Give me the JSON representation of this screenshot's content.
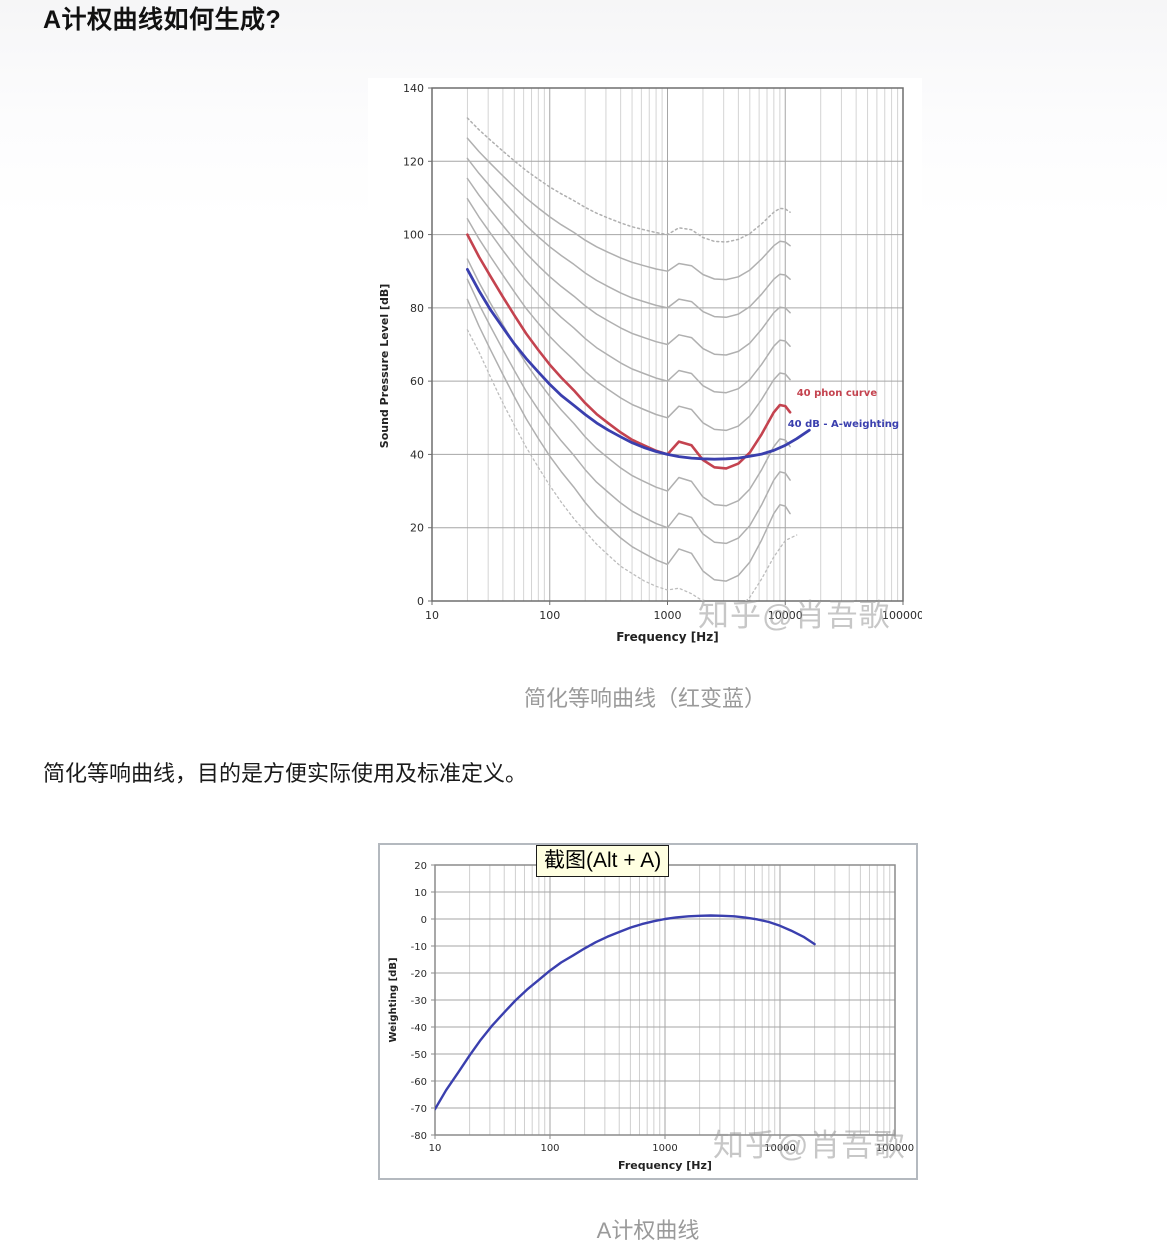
{
  "page": {
    "heading": "A计权曲线如何生成?",
    "caption_1": "简化等响曲线（红变蓝）",
    "paragraph": "简化等响曲线，目的是方便实际使用及标准定义。",
    "caption_2": "A计权曲线",
    "watermark": "知乎@肖吾歌",
    "tooltip": "截图(Alt + A)"
  },
  "colors": {
    "red_curve": "#c4434f",
    "blue_curve": "#3a3fae",
    "grey_curve": "#b0b0b0",
    "caption_grey": "#9a9a9a",
    "tooltip_bg": "#ffffe1"
  },
  "chart_data": [
    {
      "id": "elc",
      "type": "line",
      "xscale": "log",
      "title": "",
      "xlabel": "Frequency [Hz]",
      "ylabel": "Sound Pressure Level [dB]",
      "xlim": [
        10,
        100000
      ],
      "ylim": [
        0,
        140
      ],
      "xticks": [
        10,
        100,
        1000,
        10000,
        100000
      ],
      "yticks": [
        0,
        20,
        40,
        60,
        80,
        100,
        120,
        140
      ],
      "grid": true,
      "series": [
        {
          "name": "equal-loudness contours (phon family, grey)",
          "type": "family",
          "color": "#b0b0b0",
          "width": 1.5,
          "levels": [
            10,
            20,
            30,
            50,
            60,
            70,
            80,
            90
          ],
          "dotted_levels": [
            100
          ],
          "k_a": 1.28,
          "k_b": 0.0075,
          "freqs": [
            20,
            25,
            31.5,
            40,
            50,
            63,
            80,
            100,
            125,
            160,
            200,
            250,
            315,
            400,
            500,
            630,
            800,
            1000,
            1250,
            1600,
            2000,
            2500,
            3150,
            4000,
            5000,
            6300,
            8000,
            9000,
            10000,
            11000
          ],
          "offsets": [
            60,
            54,
            48.5,
            43,
            38,
            33,
            28.5,
            24.5,
            21,
            17.5,
            14,
            11,
            8.5,
            6,
            4,
            2.5,
            1,
            0,
            3.5,
            2.5,
            -1.5,
            -3.5,
            -3.8,
            -2.5,
            0.5,
            5.5,
            11.5,
            13.5,
            13.2,
            11.5
          ]
        },
        {
          "name": "hearing threshold (dotted)",
          "color": "#bdbdbd",
          "width": 1.3,
          "dash": "2 3",
          "points": [
            [
              20,
              74
            ],
            [
              25,
              68
            ],
            [
              31.5,
              61
            ],
            [
              40,
              54
            ],
            [
              50,
              48
            ],
            [
              63,
              42
            ],
            [
              80,
              36.5
            ],
            [
              100,
              31.5
            ],
            [
              125,
              27
            ],
            [
              160,
              22.5
            ],
            [
              200,
              19
            ],
            [
              250,
              15.5
            ],
            [
              315,
              12.5
            ],
            [
              400,
              9.5
            ],
            [
              500,
              7.5
            ],
            [
              630,
              5.5
            ],
            [
              800,
              4
            ],
            [
              1000,
              3
            ],
            [
              1250,
              3.5
            ],
            [
              1600,
              2
            ],
            [
              2000,
              0
            ],
            [
              2500,
              -2
            ],
            [
              3150,
              -3
            ],
            [
              4000,
              -2
            ],
            [
              5000,
              1
            ],
            [
              6300,
              6
            ],
            [
              8000,
              12
            ],
            [
              10000,
              16.5
            ],
            [
              12500,
              18
            ]
          ]
        },
        {
          "name": "40 phon curve",
          "color": "#c4434f",
          "width": 2.6,
          "points": [
            [
              20,
              100
            ],
            [
              25,
              94
            ],
            [
              31.5,
              88.5
            ],
            [
              40,
              83
            ],
            [
              50,
              78
            ],
            [
              63,
              73
            ],
            [
              80,
              68.5
            ],
            [
              100,
              64.5
            ],
            [
              125,
              61
            ],
            [
              160,
              57.5
            ],
            [
              200,
              54
            ],
            [
              250,
              51
            ],
            [
              315,
              48.5
            ],
            [
              400,
              46
            ],
            [
              500,
              44
            ],
            [
              630,
              42.5
            ],
            [
              800,
              41
            ],
            [
              1000,
              40
            ],
            [
              1250,
              43.5
            ],
            [
              1600,
              42.5
            ],
            [
              2000,
              38.5
            ],
            [
              2500,
              36.5
            ],
            [
              3150,
              36.2
            ],
            [
              4000,
              37.5
            ],
            [
              5000,
              40.5
            ],
            [
              6300,
              45.5
            ],
            [
              8000,
              51.5
            ],
            [
              9000,
              53.5
            ],
            [
              10000,
              53.2
            ],
            [
              11000,
              51.5
            ]
          ]
        },
        {
          "name": "40 dB - A-weighting",
          "color": "#3a3fae",
          "width": 2.8,
          "points": [
            [
              20,
              90.5
            ],
            [
              25,
              84.7
            ],
            [
              31.5,
              79.4
            ],
            [
              40,
              74.6
            ],
            [
              50,
              70.2
            ],
            [
              63,
              66.2
            ],
            [
              80,
              62.5
            ],
            [
              100,
              59.1
            ],
            [
              125,
              56.1
            ],
            [
              160,
              53.4
            ],
            [
              200,
              50.9
            ],
            [
              250,
              48.6
            ],
            [
              315,
              46.6
            ],
            [
              400,
              44.8
            ],
            [
              500,
              43.2
            ],
            [
              630,
              41.9
            ],
            [
              800,
              40.8
            ],
            [
              1000,
              40
            ],
            [
              1250,
              39.4
            ],
            [
              1600,
              39
            ],
            [
              2000,
              38.8
            ],
            [
              2500,
              38.7
            ],
            [
              3150,
              38.8
            ],
            [
              4000,
              39
            ],
            [
              5000,
              39.5
            ],
            [
              6300,
              40.1
            ],
            [
              8000,
              41.1
            ],
            [
              10000,
              42.5
            ],
            [
              12500,
              44.3
            ],
            [
              16000,
              46.6
            ]
          ]
        }
      ],
      "annotations": [
        {
          "text": "40 phon curve",
          "color": "#c4434f",
          "f": 12500,
          "db": 56,
          "size": 10
        },
        {
          "text": "40 dB - A-weighting",
          "color": "#3a3fae",
          "f": 10500,
          "db": 47.5,
          "size": 10
        }
      ]
    },
    {
      "id": "aw",
      "type": "line",
      "xscale": "log",
      "title": "",
      "xlabel": "Frequency [Hz]",
      "ylabel": "Weighting [dB]",
      "xlim": [
        10,
        100000
      ],
      "ylim": [
        -80,
        20
      ],
      "xticks": [
        10,
        100,
        1000,
        10000,
        100000
      ],
      "yticks": [
        20,
        10,
        0,
        -10,
        -20,
        -30,
        -40,
        -50,
        -60,
        -70,
        -80
      ],
      "grid": true,
      "series": [
        {
          "name": "A-weighting curve",
          "color": "#3a3fae",
          "width": 2.4,
          "points": [
            [
              10,
              -70.4
            ],
            [
              12.5,
              -63.4
            ],
            [
              16,
              -56.7
            ],
            [
              20,
              -50.5
            ],
            [
              25,
              -44.7
            ],
            [
              31.5,
              -39.4
            ],
            [
              40,
              -34.6
            ],
            [
              50,
              -30.2
            ],
            [
              63,
              -26.2
            ],
            [
              80,
              -22.5
            ],
            [
              100,
              -19.1
            ],
            [
              125,
              -16.1
            ],
            [
              160,
              -13.4
            ],
            [
              200,
              -10.9
            ],
            [
              250,
              -8.6
            ],
            [
              315,
              -6.6
            ],
            [
              400,
              -4.8
            ],
            [
              500,
              -3.2
            ],
            [
              630,
              -1.9
            ],
            [
              800,
              -0.8
            ],
            [
              1000,
              0
            ],
            [
              1250,
              0.6
            ],
            [
              1600,
              1
            ],
            [
              2000,
              1.2
            ],
            [
              2500,
              1.3
            ],
            [
              3150,
              1.2
            ],
            [
              4000,
              1
            ],
            [
              5000,
              0.5
            ],
            [
              6300,
              -0.1
            ],
            [
              8000,
              -1.1
            ],
            [
              10000,
              -2.5
            ],
            [
              12500,
              -4.3
            ],
            [
              16000,
              -6.6
            ],
            [
              20000,
              -9.3
            ]
          ]
        }
      ],
      "annotations": []
    }
  ]
}
